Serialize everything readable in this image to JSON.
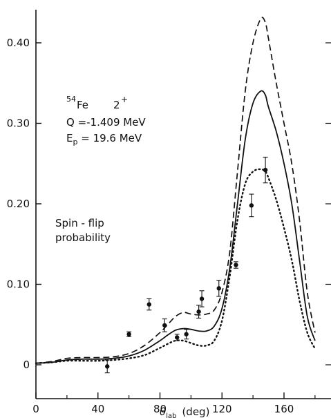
{
  "chart_data": {
    "type": "line",
    "xlabel": "θ",
    "xlabel_sub": "lab",
    "xlabel_unit": "(deg)",
    "ylabel": "",
    "xlim": [
      0,
      180
    ],
    "ylim": [
      -0.015,
      0.46
    ],
    "x_ticks": [
      0,
      40,
      80,
      120,
      160
    ],
    "y_ticks": [
      0,
      0.1,
      0.2,
      0.3,
      0.4
    ],
    "x_tick_labels": [
      "0",
      "40",
      "80",
      "120",
      "160"
    ],
    "y_tick_labels": [
      "0",
      "0.10",
      "0.20",
      "0.30",
      "0.40"
    ],
    "grid": false,
    "annotations": {
      "nucleus_mass": "54",
      "nucleus_symbol": "Fe",
      "state_spin": "2",
      "state_parity": "+",
      "q_value": "Q =-1.409  MeV",
      "ep_prefix": "E",
      "ep_sub": "p",
      "ep_value": " = 19.6  MeV",
      "label_line1": "Spin - flip",
      "label_line2": "probability"
    },
    "series": [
      {
        "style": "dashed",
        "x": [
          0,
          10,
          20,
          30,
          40,
          50,
          60,
          70,
          80,
          85,
          90,
          95,
          100,
          105,
          110,
          115,
          120,
          125,
          130,
          135,
          140,
          145,
          148,
          150,
          155,
          160,
          165,
          170,
          175,
          180
        ],
        "y": [
          0.002,
          0.004,
          0.008,
          0.009,
          0.009,
          0.01,
          0.014,
          0.024,
          0.04,
          0.05,
          0.06,
          0.065,
          0.063,
          0.062,
          0.063,
          0.068,
          0.09,
          0.14,
          0.24,
          0.34,
          0.4,
          0.43,
          0.425,
          0.405,
          0.35,
          0.3,
          0.25,
          0.18,
          0.09,
          0.04
        ]
      },
      {
        "style": "solid",
        "x": [
          0,
          10,
          20,
          30,
          40,
          50,
          60,
          70,
          80,
          85,
          90,
          95,
          100,
          105,
          110,
          115,
          120,
          125,
          130,
          135,
          140,
          145,
          148,
          150,
          155,
          160,
          165,
          170,
          175,
          180
        ],
        "y": [
          0.002,
          0.003,
          0.006,
          0.007,
          0.007,
          0.008,
          0.011,
          0.018,
          0.03,
          0.037,
          0.043,
          0.045,
          0.044,
          0.042,
          0.042,
          0.048,
          0.07,
          0.12,
          0.2,
          0.28,
          0.325,
          0.34,
          0.335,
          0.32,
          0.29,
          0.25,
          0.2,
          0.13,
          0.06,
          0.03
        ]
      },
      {
        "style": "dotted",
        "x": [
          0,
          10,
          20,
          30,
          40,
          50,
          60,
          70,
          80,
          85,
          90,
          95,
          100,
          105,
          110,
          115,
          120,
          125,
          130,
          135,
          140,
          145,
          148,
          150,
          155,
          160,
          165,
          170,
          175,
          180
        ],
        "y": [
          0.002,
          0.003,
          0.005,
          0.005,
          0.005,
          0.006,
          0.008,
          0.012,
          0.021,
          0.026,
          0.03,
          0.03,
          0.027,
          0.024,
          0.024,
          0.03,
          0.055,
          0.11,
          0.18,
          0.225,
          0.24,
          0.243,
          0.24,
          0.232,
          0.205,
          0.17,
          0.13,
          0.08,
          0.04,
          0.02
        ]
      }
    ],
    "points": [
      {
        "x": 46,
        "y": -0.002,
        "err": 0.008
      },
      {
        "x": 60,
        "y": 0.038,
        "err": 0.003
      },
      {
        "x": 73,
        "y": 0.075,
        "err": 0.007
      },
      {
        "x": 83,
        "y": 0.049,
        "err": 0.008
      },
      {
        "x": 91,
        "y": 0.034,
        "err": 0.004
      },
      {
        "x": 97,
        "y": 0.038,
        "err": 0.006
      },
      {
        "x": 105,
        "y": 0.066,
        "err": 0.008
      },
      {
        "x": 107,
        "y": 0.082,
        "err": 0.01
      },
      {
        "x": 118,
        "y": 0.095,
        "err": 0.01
      },
      {
        "x": 129,
        "y": 0.124,
        "err": 0.004
      },
      {
        "x": 139,
        "y": 0.198,
        "err": 0.014
      },
      {
        "x": 148,
        "y": 0.242,
        "err": 0.016
      }
    ]
  }
}
